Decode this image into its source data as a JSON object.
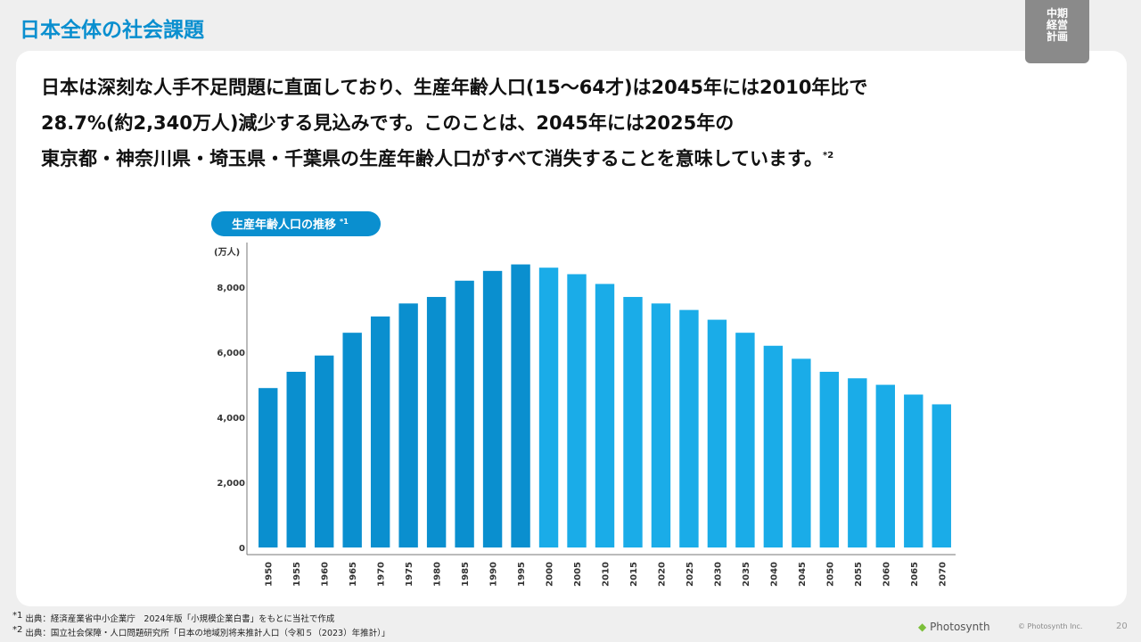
{
  "header": {
    "title": "日本全体の社会課題",
    "tab": [
      "中期",
      "経営",
      "計画"
    ]
  },
  "headline": {
    "lines": [
      "日本は深刻な人手不足問題に直面しており、生産年齢人口(15〜64才)は2045年には2010年比で",
      "28.7%(約2,340万人)減少する見込みです。このことは、2045年には2025年の",
      "東京都・神奈川県・埼玉県・千葉県の生産年齢人口がすべて消失することを意味しています。"
    ],
    "note_mark": "*2"
  },
  "chart_data": {
    "type": "bar",
    "title": "生産年齢人口の推移",
    "title_note": "*1",
    "y_label": "(万人)",
    "categories": [
      "1950",
      "1955",
      "1960",
      "1965",
      "1970",
      "1975",
      "1980",
      "1985",
      "1990",
      "1995",
      "2000",
      "2005",
      "2010",
      "2015",
      "2020",
      "2025",
      "2030",
      "2035",
      "2040",
      "2045",
      "2050",
      "2055",
      "2060",
      "2065",
      "2070"
    ],
    "values": [
      4900,
      5400,
      5900,
      6600,
      7100,
      7500,
      7700,
      8200,
      8500,
      8700,
      8600,
      8400,
      8100,
      7700,
      7500,
      7300,
      7000,
      6600,
      6200,
      5800,
      5400,
      5200,
      5000,
      4700,
      4400
    ],
    "colors": [
      "#0a8fcf",
      "#0a8fcf",
      "#0a8fcf",
      "#0a8fcf",
      "#0a8fcf",
      "#0a8fcf",
      "#0a8fcf",
      "#0a8fcf",
      "#0a8fcf",
      "#0a8fcf",
      "#1aace8",
      "#1aace8",
      "#1aace8",
      "#1aace8",
      "#1aace8",
      "#1aace8",
      "#1aace8",
      "#1aace8",
      "#1aace8",
      "#1aace8",
      "#1aace8",
      "#1aace8",
      "#1aace8",
      "#1aace8",
      "#1aace8"
    ],
    "ylim": [
      0,
      9400
    ],
    "yticks": [
      0,
      {
        "value": 2000,
        "label": "2,000"
      },
      {
        "value": 4000,
        "label": "4,000"
      },
      {
        "value": 6000,
        "label": "6,000"
      },
      {
        "value": 8000,
        "label": "8,000"
      }
    ],
    "grid": false
  },
  "footnotes": [
    {
      "mark": "*1",
      "text": "出典：経済産業省中小企業庁　2024年版「小規模企業白書」をもとに当社で作成"
    },
    {
      "mark": "*2",
      "text": "出典：国立社会保障・人口問題研究所「日本の地域別将来推計人口（令和５（2023）年推計）」"
    }
  ],
  "footer": {
    "logo": "Photosynth",
    "copyright": "© Photosynth Inc.",
    "page": "20"
  }
}
